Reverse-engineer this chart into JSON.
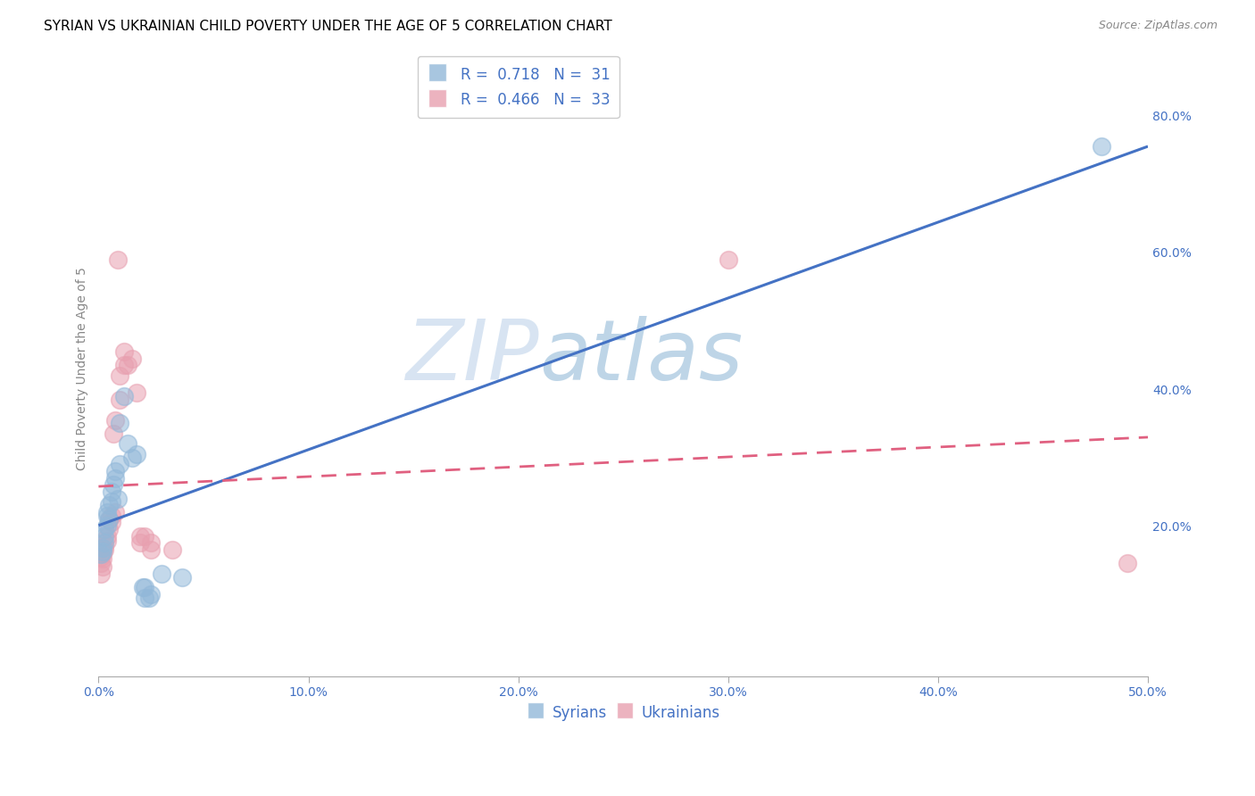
{
  "title": "SYRIAN VS UKRAINIAN CHILD POVERTY UNDER THE AGE OF 5 CORRELATION CHART",
  "source": "Source: ZipAtlas.com",
  "ylabel": "Child Poverty Under the Age of 5",
  "xlim": [
    0.0,
    0.5
  ],
  "ylim": [
    -0.02,
    0.88
  ],
  "xticks": [
    0.0,
    0.1,
    0.2,
    0.3,
    0.4,
    0.5
  ],
  "xticklabels": [
    "0.0%",
    "10.0%",
    "20.0%",
    "30.0%",
    "40.0%",
    "50.0%"
  ],
  "yticks_right": [
    0.0,
    0.2,
    0.4,
    0.6,
    0.8
  ],
  "yticklabels_right": [
    "",
    "20.0%",
    "40.0%",
    "60.0%",
    "80.0%"
  ],
  "syrian_color": "#92b8d9",
  "ukrainian_color": "#e8a0b0",
  "syrian_line_color": "#4472c4",
  "ukrainian_line_color": "#e06080",
  "watermark_color": "#b8cfe8",
  "legend_label_syrian": "R =  0.718   N =  31",
  "legend_label_ukrainian": "R =  0.466   N =  33",
  "syrians_label": "Syrians",
  "ukrainians_label": "Ukrainians",
  "syrian_scatter": [
    [
      0.001,
      0.158
    ],
    [
      0.002,
      0.168
    ],
    [
      0.002,
      0.162
    ],
    [
      0.003,
      0.195
    ],
    [
      0.003,
      0.175
    ],
    [
      0.003,
      0.185
    ],
    [
      0.004,
      0.22
    ],
    [
      0.004,
      0.2
    ],
    [
      0.004,
      0.215
    ],
    [
      0.005,
      0.23
    ],
    [
      0.005,
      0.21
    ],
    [
      0.006,
      0.25
    ],
    [
      0.006,
      0.235
    ],
    [
      0.007,
      0.26
    ],
    [
      0.008,
      0.27
    ],
    [
      0.008,
      0.28
    ],
    [
      0.009,
      0.24
    ],
    [
      0.01,
      0.29
    ],
    [
      0.01,
      0.35
    ],
    [
      0.012,
      0.39
    ],
    [
      0.014,
      0.32
    ],
    [
      0.016,
      0.3
    ],
    [
      0.018,
      0.305
    ],
    [
      0.021,
      0.11
    ],
    [
      0.022,
      0.11
    ],
    [
      0.022,
      0.095
    ],
    [
      0.024,
      0.095
    ],
    [
      0.025,
      0.1
    ],
    [
      0.03,
      0.13
    ],
    [
      0.04,
      0.125
    ],
    [
      0.478,
      0.755
    ]
  ],
  "ukrainian_scatter": [
    [
      0.001,
      0.13
    ],
    [
      0.001,
      0.145
    ],
    [
      0.001,
      0.155
    ],
    [
      0.002,
      0.16
    ],
    [
      0.002,
      0.152
    ],
    [
      0.002,
      0.14
    ],
    [
      0.003,
      0.17
    ],
    [
      0.003,
      0.165
    ],
    [
      0.004,
      0.185
    ],
    [
      0.004,
      0.178
    ],
    [
      0.005,
      0.21
    ],
    [
      0.005,
      0.195
    ],
    [
      0.006,
      0.215
    ],
    [
      0.006,
      0.205
    ],
    [
      0.007,
      0.335
    ],
    [
      0.008,
      0.22
    ],
    [
      0.008,
      0.355
    ],
    [
      0.009,
      0.59
    ],
    [
      0.01,
      0.385
    ],
    [
      0.01,
      0.42
    ],
    [
      0.012,
      0.435
    ],
    [
      0.012,
      0.455
    ],
    [
      0.014,
      0.435
    ],
    [
      0.016,
      0.445
    ],
    [
      0.018,
      0.395
    ],
    [
      0.02,
      0.185
    ],
    [
      0.02,
      0.175
    ],
    [
      0.022,
      0.185
    ],
    [
      0.025,
      0.165
    ],
    [
      0.025,
      0.175
    ],
    [
      0.035,
      0.165
    ],
    [
      0.3,
      0.59
    ],
    [
      0.49,
      0.145
    ]
  ],
  "title_fontsize": 11,
  "axis_label_fontsize": 10,
  "tick_fontsize": 10,
  "legend_fontsize": 12,
  "marker_size": 200
}
